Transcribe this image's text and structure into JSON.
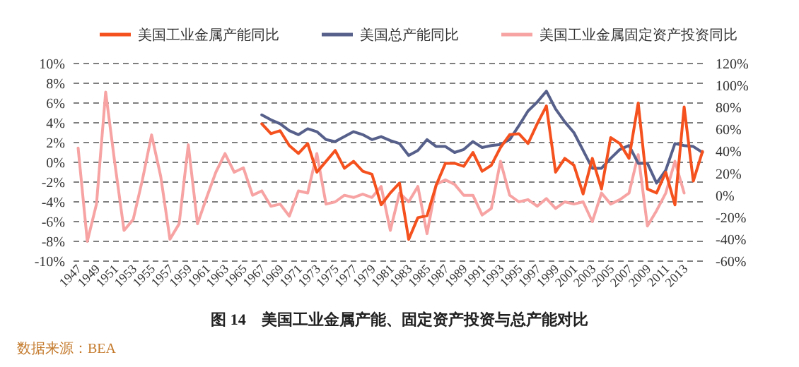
{
  "chart_data": {
    "type": "line",
    "title": "图 14　美国工业金属产能、固定资产投资与总产能对比",
    "annotations": [
      "数据来源：BEA"
    ],
    "categories": [
      "1947",
      null,
      "1949",
      null,
      "1951",
      null,
      "1953",
      null,
      "1955",
      null,
      "1957",
      null,
      "1959",
      null,
      "1961",
      null,
      "1963",
      null,
      "1965",
      null,
      "1967",
      null,
      "1969",
      null,
      "1971",
      null,
      "1973",
      null,
      "1975",
      null,
      "1977",
      null,
      "1979",
      null,
      "1981",
      null,
      "1983",
      null,
      "1985",
      null,
      "1987",
      null,
      "1989",
      null,
      "1991",
      null,
      "1993",
      null,
      "1995",
      null,
      "1997",
      null,
      "1999",
      null,
      "2001",
      null,
      "2003",
      null,
      "2005",
      null,
      "2007",
      null,
      "2009",
      null,
      "2011",
      null,
      "2013",
      null,
      null
    ],
    "series": [
      {
        "name": "美国工业金属产能同比",
        "color": "#f4511e",
        "values": [
          null,
          null,
          null,
          null,
          null,
          null,
          null,
          null,
          null,
          null,
          null,
          null,
          null,
          null,
          null,
          null,
          null,
          null,
          null,
          null,
          3.9,
          2.9,
          3.2,
          1.7,
          0.9,
          1.9,
          -1.0,
          0.1,
          1.2,
          -0.6,
          0.1,
          -0.9,
          -1.2,
          -4.3,
          -3.1,
          -2.1,
          -7.8,
          -5.6,
          -5.4,
          -2.3,
          -0.1,
          -0.1,
          -0.4,
          1.0,
          -0.9,
          -0.3,
          1.5,
          2.8,
          2.9,
          1.9,
          3.9,
          5.7,
          -1.0,
          0.4,
          -0.3,
          -3.2,
          0.4,
          -2.7,
          2.5,
          1.9,
          0.4,
          6.0,
          -2.7,
          -3.1,
          -1.0,
          -4.3,
          5.6,
          -1.9,
          1.1
        ]
      },
      {
        "name": "美国总产能同比",
        "color": "#56608a",
        "values": [
          null,
          null,
          null,
          null,
          null,
          null,
          null,
          null,
          null,
          null,
          null,
          null,
          null,
          null,
          null,
          null,
          null,
          null,
          null,
          null,
          4.8,
          4.3,
          3.9,
          3.2,
          2.8,
          3.4,
          3.1,
          2.3,
          2.1,
          2.6,
          3.1,
          2.8,
          2.3,
          2.6,
          2.2,
          1.9,
          0.7,
          1.2,
          2.3,
          1.6,
          1.6,
          1.0,
          1.3,
          2.1,
          1.5,
          1.7,
          1.8,
          2.3,
          3.7,
          5.2,
          6.1,
          7.2,
          5.4,
          4.1,
          3.0,
          1.2,
          -0.6,
          -0.6,
          0.4,
          1.3,
          1.7,
          -0.1,
          -0.1,
          -2.1,
          -0.8,
          1.9,
          1.7,
          1.6,
          1.0
        ]
      },
      {
        "name": "美国工业金属固定资产投资同比",
        "color": "#f7a3a3",
        "axis": "y2",
        "values": [
          43,
          -42,
          -8,
          94,
          29,
          -32,
          -22,
          14,
          55,
          17,
          -40,
          -26,
          46,
          -26,
          -2,
          21,
          38,
          21,
          25,
          0,
          4,
          -10,
          -8,
          -19,
          4,
          2,
          38,
          -8,
          -6,
          0,
          -2,
          1,
          -2,
          8,
          -32,
          2,
          -6,
          8,
          -35,
          10,
          14,
          10,
          0,
          0,
          -18,
          -12,
          31,
          0,
          -6,
          -4,
          -10,
          -3,
          -12,
          -6,
          -8,
          -6,
          -24,
          2,
          -8,
          -4,
          2,
          37,
          -28,
          -14,
          2,
          31,
          2,
          null,
          null
        ]
      }
    ],
    "ylim": [
      -10,
      10
    ],
    "yticks": [
      {
        "value": -10,
        "label": "-10%"
      },
      {
        "value": -8,
        "label": "-8%"
      },
      {
        "value": -6,
        "label": "-6%"
      },
      {
        "value": -4,
        "label": "-4%"
      },
      {
        "value": -2,
        "label": "-2%"
      },
      {
        "value": 0,
        "label": "0%"
      },
      {
        "value": 2,
        "label": "2%"
      },
      {
        "value": 4,
        "label": "4%"
      },
      {
        "value": 6,
        "label": "6%"
      },
      {
        "value": 8,
        "label": "8%"
      },
      {
        "value": 10,
        "label": "10%"
      }
    ],
    "y2lim": [
      -60,
      120
    ],
    "y2ticks": [
      {
        "value": -60,
        "label": "-60%"
      },
      {
        "value": -40,
        "label": "-40%"
      },
      {
        "value": -20,
        "label": "-20%"
      },
      {
        "value": 0,
        "label": "0%"
      },
      {
        "value": 20,
        "label": "20%"
      },
      {
        "value": 40,
        "label": "40%"
      },
      {
        "value": 60,
        "label": "60%"
      },
      {
        "value": 80,
        "label": "80%"
      },
      {
        "value": 100,
        "label": "100%"
      },
      {
        "value": 120,
        "label": "120%"
      }
    ],
    "grid": "y",
    "legend": "top"
  }
}
